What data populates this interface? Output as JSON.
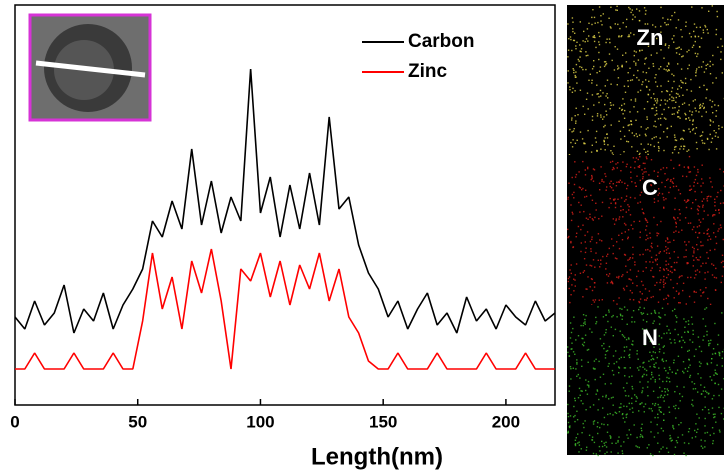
{
  "chart_data": {
    "type": "line",
    "xlabel": "Length(nm)",
    "x": [
      0,
      4,
      8,
      12,
      16,
      20,
      24,
      28,
      32,
      36,
      40,
      44,
      48,
      52,
      56,
      60,
      64,
      68,
      72,
      76,
      80,
      84,
      88,
      92,
      96,
      100,
      104,
      108,
      112,
      116,
      120,
      124,
      128,
      132,
      136,
      140,
      144,
      148,
      152,
      156,
      160,
      164,
      168,
      172,
      176,
      180,
      184,
      188,
      192,
      196,
      200,
      204,
      208,
      212,
      216,
      220
    ],
    "series": [
      {
        "name": "Carbon",
        "color": "#000000",
        "values": [
          2.2,
          1.9,
          2.6,
          2.0,
          2.3,
          3.0,
          1.8,
          2.4,
          2.1,
          2.8,
          1.9,
          2.5,
          2.9,
          3.4,
          4.6,
          4.2,
          5.1,
          4.4,
          6.4,
          4.5,
          5.6,
          4.3,
          5.2,
          4.6,
          8.4,
          4.8,
          5.7,
          4.2,
          5.5,
          4.4,
          5.8,
          4.5,
          7.2,
          4.9,
          5.2,
          4.0,
          3.3,
          2.9,
          2.2,
          2.6,
          1.9,
          2.4,
          2.8,
          2.0,
          2.3,
          1.8,
          2.7,
          2.1,
          2.4,
          1.9,
          2.5,
          2.2,
          2.0,
          2.6,
          2.1,
          2.3
        ]
      },
      {
        "name": "Zinc",
        "color": "#ff0000",
        "values": [
          0.9,
          0.9,
          1.3,
          0.9,
          0.9,
          0.9,
          1.3,
          0.9,
          0.9,
          0.9,
          1.3,
          0.9,
          0.9,
          2.1,
          3.8,
          2.4,
          3.2,
          1.9,
          3.6,
          2.8,
          3.9,
          2.6,
          0.9,
          3.4,
          3.1,
          3.8,
          2.7,
          3.6,
          2.5,
          3.5,
          2.9,
          3.8,
          2.6,
          3.4,
          2.2,
          1.8,
          1.1,
          0.9,
          0.9,
          1.3,
          0.9,
          0.9,
          0.9,
          1.3,
          0.9,
          0.9,
          0.9,
          0.9,
          1.3,
          0.9,
          0.9,
          0.9,
          1.3,
          0.9,
          0.9,
          0.9
        ]
      }
    ],
    "xlim": [
      0,
      220
    ],
    "xticks": [
      0,
      50,
      100,
      150,
      200
    ],
    "ylim": [
      0,
      10
    ],
    "maps": [
      {
        "label": "Zn",
        "color": "#e6d84a"
      },
      {
        "label": "C",
        "color": "#e0201a"
      },
      {
        "label": "N",
        "color": "#3fbf2a"
      }
    ]
  }
}
